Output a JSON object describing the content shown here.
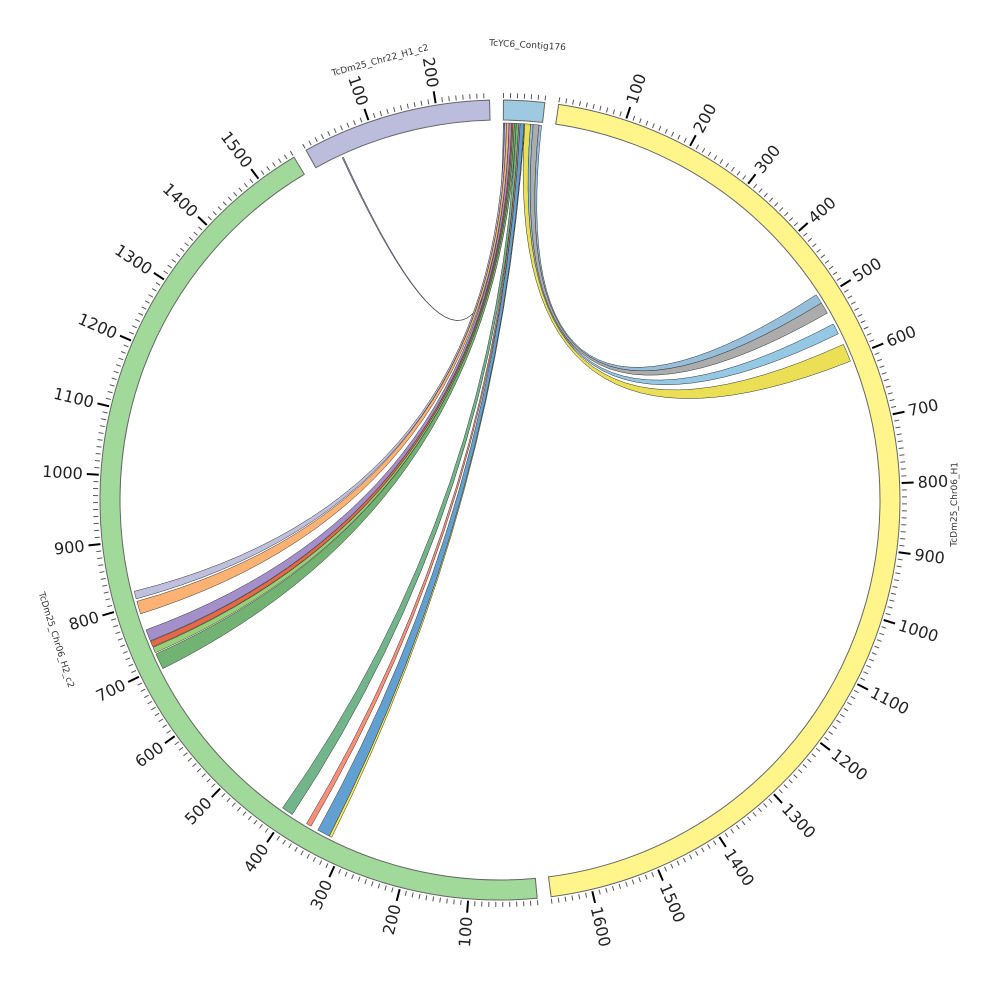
{
  "chart_data": {
    "type": "chord",
    "title": "",
    "tick_interval_minor": 10,
    "tick_interval_major": 100,
    "chromosomes": [
      {
        "name": "TcYC6_Contig176",
        "length": 60,
        "color": "#9ecae1",
        "show_labels": false
      },
      {
        "name": "TcDm25_Chr06_H1",
        "length": 1660,
        "color": "#fff58a",
        "show_labels": true
      },
      {
        "name": "TcDm25_Chr06_H2_c2",
        "length": 1560,
        "color": "#a1d99b",
        "show_labels": true
      },
      {
        "name": "TcDm25_Chr22_H1_c2",
        "length": 278,
        "color": "#bcbddc",
        "show_labels": true
      }
    ],
    "links": [
      {
        "from": "TcYC6_Contig176",
        "from_range": [
          0,
          2
        ],
        "to": "TcDm25_Chr22_H1_c2",
        "to_range": [
          43,
          45
        ],
        "color": "#8c86b8"
      },
      {
        "from": "TcYC6_Contig176",
        "from_range": [
          2,
          5
        ],
        "to": "TcDm25_Chr06_H2_c2",
        "to_range": [
          810,
          822
        ],
        "color": "#bcbddc"
      },
      {
        "from": "TcYC6_Contig176",
        "from_range": [
          5,
          9
        ],
        "to": "TcDm25_Chr06_H2_c2",
        "to_range": [
          786,
          806
        ],
        "color": "#fdae6b"
      },
      {
        "from": "TcYC6_Contig176",
        "from_range": [
          9,
          13
        ],
        "to": "TcDm25_Chr06_H2_c2",
        "to_range": [
          742,
          760
        ],
        "color": "#9e8ac8"
      },
      {
        "from": "TcYC6_Contig176",
        "from_range": [
          13,
          15
        ],
        "to": "TcDm25_Chr06_H2_c2",
        "to_range": [
          732,
          741
        ],
        "color": "#e6603a"
      },
      {
        "from": "TcYC6_Contig176",
        "from_range": [
          15,
          17
        ],
        "to": "TcDm25_Chr06_H2_c2",
        "to_range": [
          722,
          731
        ],
        "color": "#8fcf6d"
      },
      {
        "from": "TcYC6_Contig176",
        "from_range": [
          17,
          20
        ],
        "to": "TcDm25_Chr06_H2_c2",
        "to_range": [
          695,
          720
        ],
        "color": "#6aae6a"
      },
      {
        "from": "TcYC6_Contig176",
        "from_range": [
          20,
          24
        ],
        "to": "TcDm25_Chr06_H2_c2",
        "to_range": [
          392,
          410
        ],
        "color": "#6ab184"
      },
      {
        "from": "TcYC6_Contig176",
        "from_range": [
          24,
          26
        ],
        "to": "TcDm25_Chr06_H2_c2",
        "to_range": [
          358,
          366
        ],
        "color": "#fb8a72"
      },
      {
        "from": "TcYC6_Contig176",
        "from_range": [
          26,
          32
        ],
        "to": "TcDm25_Chr06_H2_c2",
        "to_range": [
          326,
          346
        ],
        "color": "#5b9bd0"
      },
      {
        "from": "TcYC6_Contig176",
        "from_range": [
          32,
          33
        ],
        "to": "TcDm25_Chr06_H2_c2",
        "to_range": [
          322,
          326
        ],
        "color": "#f5e74a"
      },
      {
        "from": "TcYC6_Contig176",
        "from_range": [
          33,
          42
        ],
        "to": "TcDm25_Chr06_H1",
        "to_range": [
          578,
          606
        ],
        "color": "#e9dd4c"
      },
      {
        "from": "TcYC6_Contig176",
        "from_range": [
          42,
          46
        ],
        "to": "TcDm25_Chr06_H1",
        "to_range": [
          543,
          560
        ],
        "color": "#8fc5e3"
      },
      {
        "from": "TcYC6_Contig176",
        "from_range": [
          46,
          55
        ],
        "to": "TcDm25_Chr06_H1",
        "to_range": [
          506,
          524
        ],
        "color": "#a8a8a8"
      },
      {
        "from": "TcYC6_Contig176",
        "from_range": [
          55,
          59
        ],
        "to": "TcDm25_Chr06_H1",
        "to_range": [
          491,
          506
        ],
        "color": "#8fbcd9"
      }
    ]
  }
}
